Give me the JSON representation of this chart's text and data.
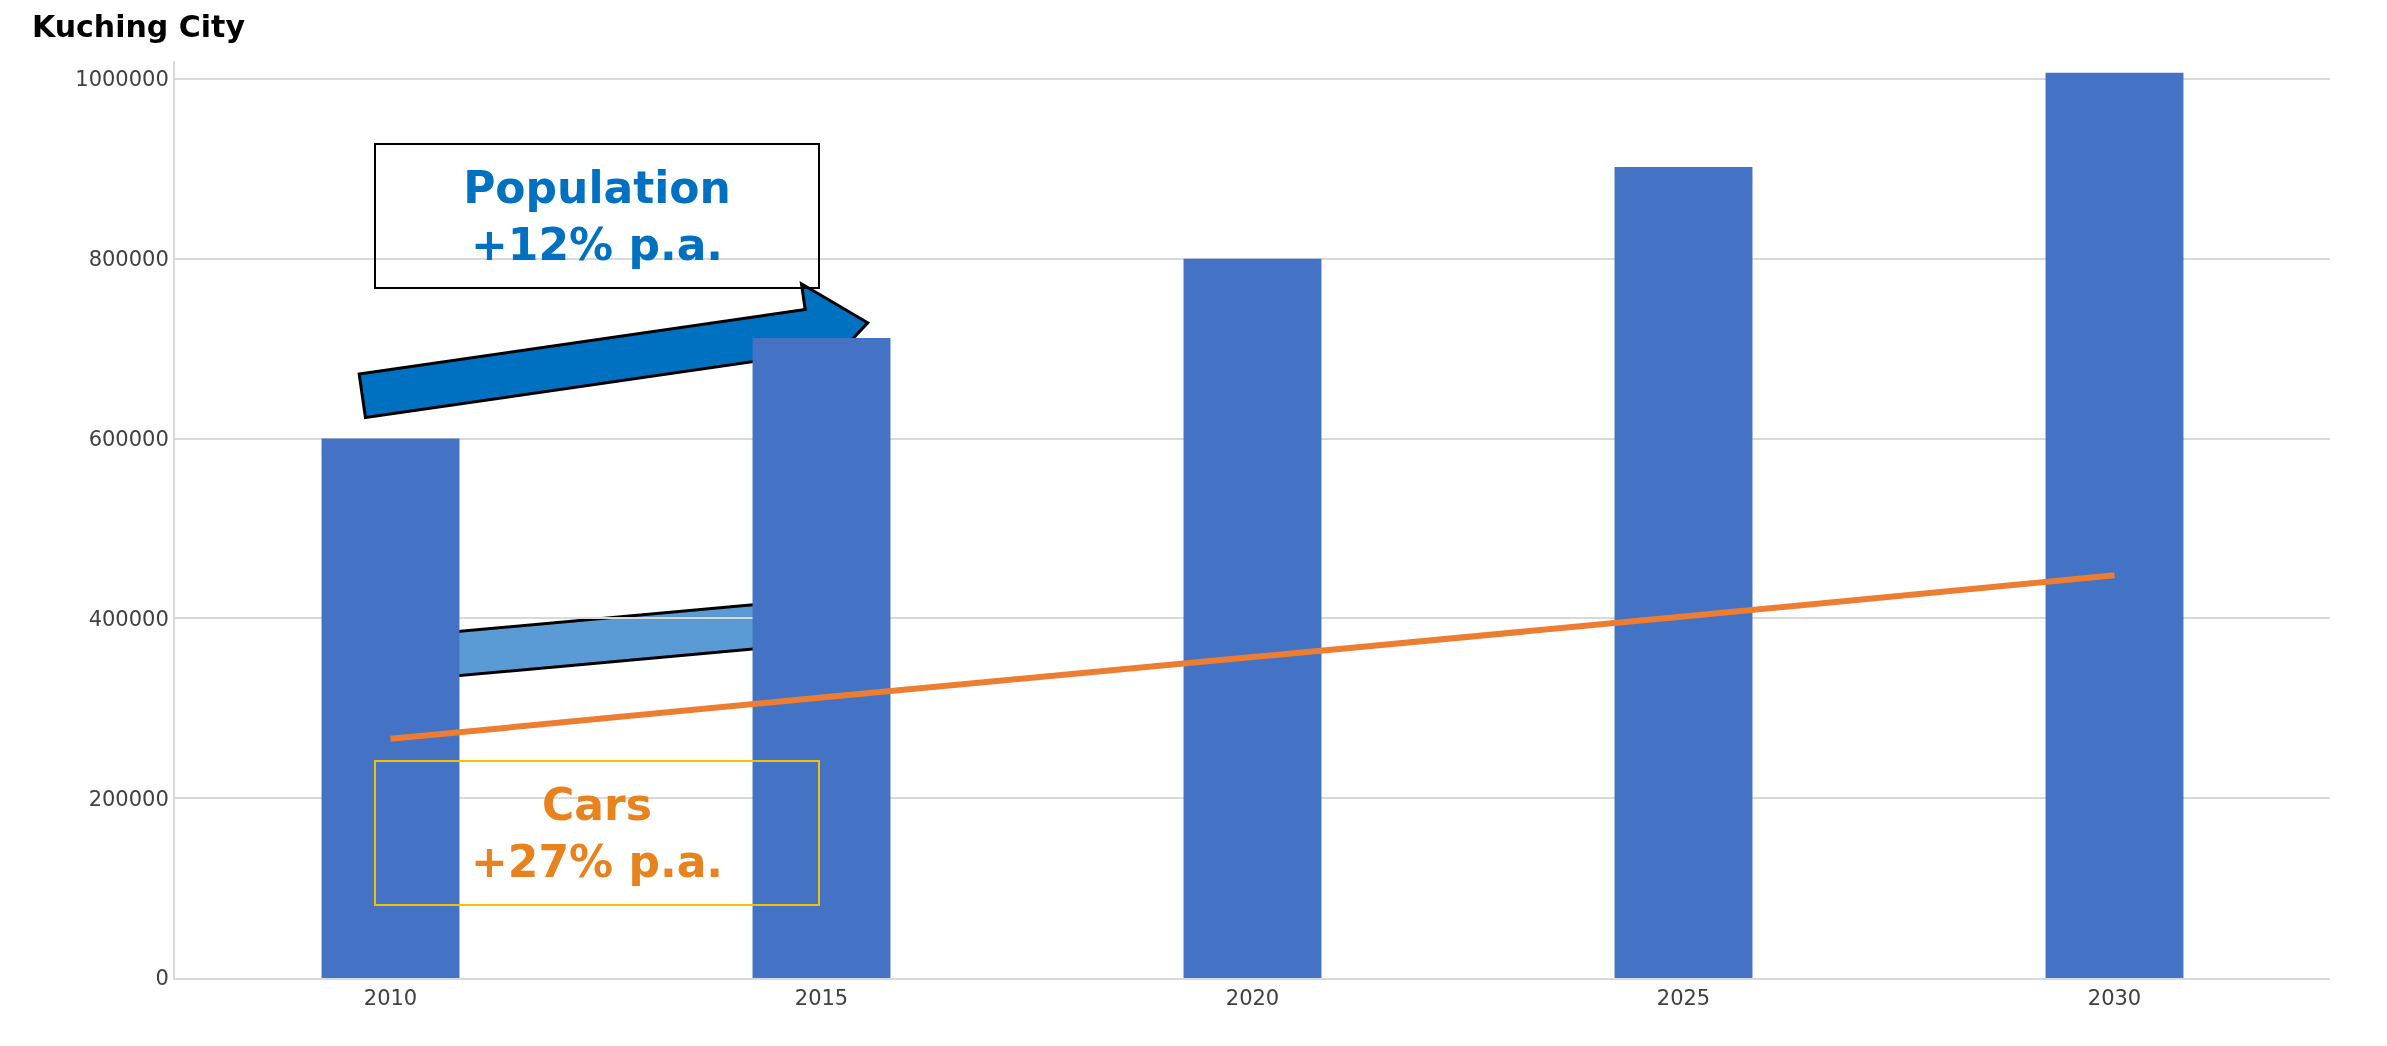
{
  "chart_data": {
    "type": "bar",
    "title": "Kuching City",
    "categories": [
      "2010",
      "2015",
      "2020",
      "2025",
      "2030"
    ],
    "series": [
      {
        "color": "#4472c4",
        "values": [
          600000,
          712000,
          800000,
          902000,
          1007000
        ]
      },
      {
        "type": "line",
        "color": "#ed7d31",
        "values": [
          266000,
          312000,
          357000,
          402000,
          448000
        ]
      }
    ],
    "ylim": [
      0,
      1020000
    ],
    "yticks": [
      0,
      200000,
      400000,
      600000,
      800000,
      1000000
    ],
    "grid": "y",
    "annotations": [
      "Population\n+12% p.a.",
      "Cars\n+27% p.a."
    ]
  }
}
